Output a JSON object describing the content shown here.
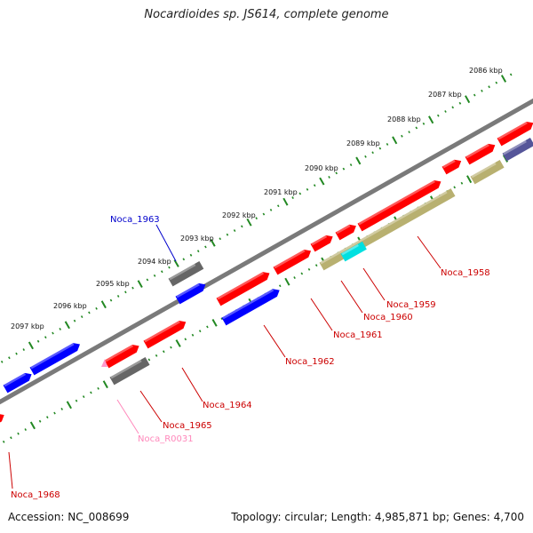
{
  "title": "Nocardioides sp. JS614, complete genome",
  "footer": {
    "accession": "Accession: NC_008699",
    "summary": "Topology: circular; Length: 4,985,871 bp; Genes: 4,700"
  },
  "colors": {
    "forward_gene": "#ff0000",
    "reverse_gene": "#0000ff",
    "pseudo_gene": "#666666",
    "rna_gene": "#ff99cc",
    "cds_feature": "#b8b070",
    "misc_feature": "#00e0e0",
    "dark_feature": "#555599",
    "backbone": "#777777",
    "tick_track": "#228822"
  },
  "scale_labels": [
    "2086 kbp",
    "2087 kbp",
    "2088 kbp",
    "2089 kbp",
    "2090 kbp",
    "2091 kbp",
    "2092 kbp",
    "2093 kbp",
    "2094 kbp",
    "2095 kbp",
    "2096 kbp",
    "2097 kbp"
  ],
  "gene_labels": [
    {
      "name": "Noca_1963",
      "color": "#0000cc"
    },
    {
      "name": "Noca_1958",
      "color": "#cc0000"
    },
    {
      "name": "Noca_1959",
      "color": "#cc0000"
    },
    {
      "name": "Noca_1960",
      "color": "#cc0000"
    },
    {
      "name": "Noca_1961",
      "color": "#cc0000"
    },
    {
      "name": "Noca_1962",
      "color": "#cc0000"
    },
    {
      "name": "Noca_1964",
      "color": "#cc0000"
    },
    {
      "name": "Noca_1965",
      "color": "#cc0000"
    },
    {
      "name": "Noca_R0031",
      "color": "#ff88bb"
    },
    {
      "name": "Noca_1968",
      "color": "#cc0000"
    }
  ]
}
